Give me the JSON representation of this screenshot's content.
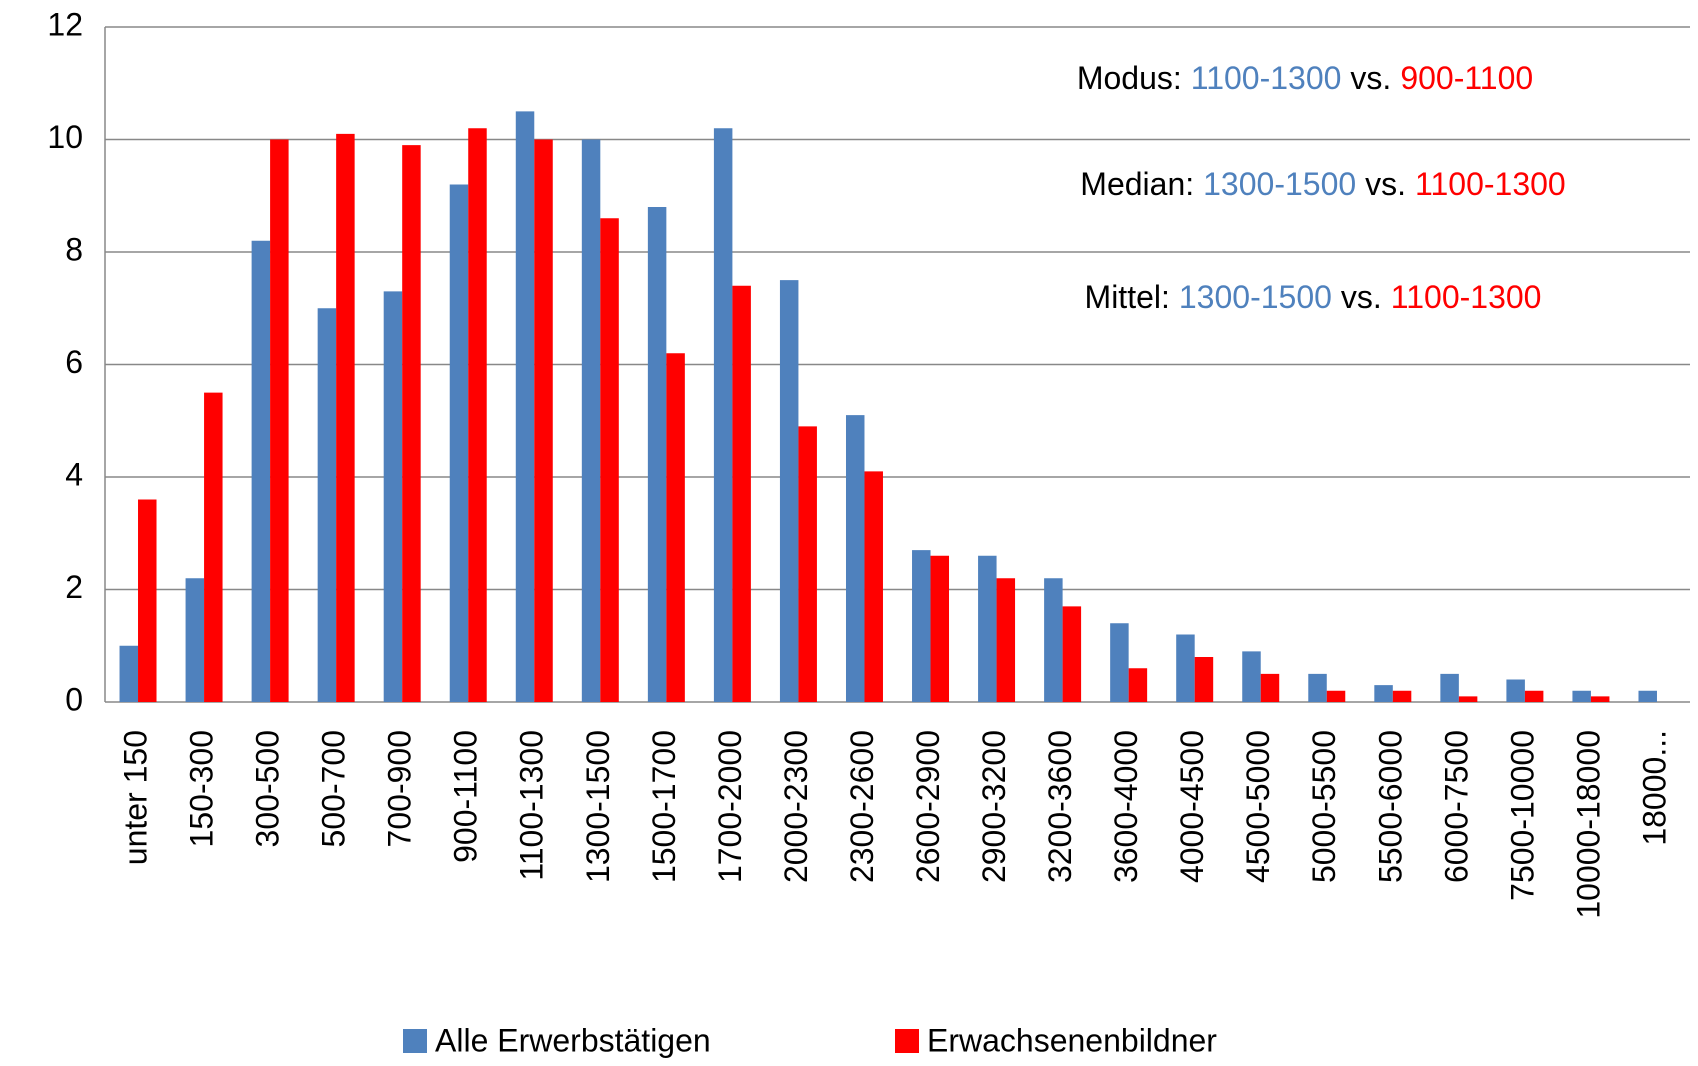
{
  "chart_data": {
    "type": "bar",
    "categories": [
      "unter 150",
      "150-300",
      "300-500",
      "500-700",
      "700-900",
      "900-1100",
      "1100-1300",
      "1300-1500",
      "1500-1700",
      "1700-2000",
      "2000-2300",
      "2300-2600",
      "2600-2900",
      "2900-3200",
      "3200-3600",
      "3600-4000",
      "4000-4500",
      "4500-5000",
      "5000-5500",
      "5500-6000",
      "6000-7500",
      "7500-10000",
      "10000-18000",
      "18000..."
    ],
    "series": [
      {
        "name": "Alle Erwerbstätigen",
        "color": "#4f81bd",
        "values": [
          1.0,
          2.2,
          8.2,
          7.0,
          7.3,
          9.2,
          10.5,
          10.0,
          8.8,
          10.2,
          7.5,
          5.1,
          2.7,
          2.6,
          2.2,
          1.4,
          1.2,
          0.9,
          0.5,
          0.3,
          0.5,
          0.4,
          0.2,
          0.2
        ]
      },
      {
        "name": "Erwachsenenbildner",
        "color": "#ff0000",
        "values": [
          3.6,
          5.5,
          10.0,
          10.1,
          9.9,
          10.2,
          10.0,
          8.6,
          6.2,
          7.4,
          4.9,
          4.1,
          2.6,
          2.2,
          1.7,
          0.6,
          0.8,
          0.5,
          0.2,
          0.2,
          0.1,
          0.2,
          0.1,
          null
        ]
      }
    ],
    "ylim": [
      0,
      12
    ],
    "yticks": [
      0,
      2,
      4,
      6,
      8,
      10,
      12
    ],
    "grid": true,
    "legend": "bottom",
    "annotations": [
      {
        "prefix": "Modus:",
        "blue": "1100-1300",
        "mid": "vs.",
        "red": "900-1100"
      },
      {
        "prefix": "Median:",
        "blue": "1300-1500",
        "mid": "vs.",
        "red": "1100-1300"
      },
      {
        "prefix": "Mittel:",
        "blue": "1300-1500",
        "mid": "vs.",
        "red": "1100-1300"
      }
    ]
  }
}
